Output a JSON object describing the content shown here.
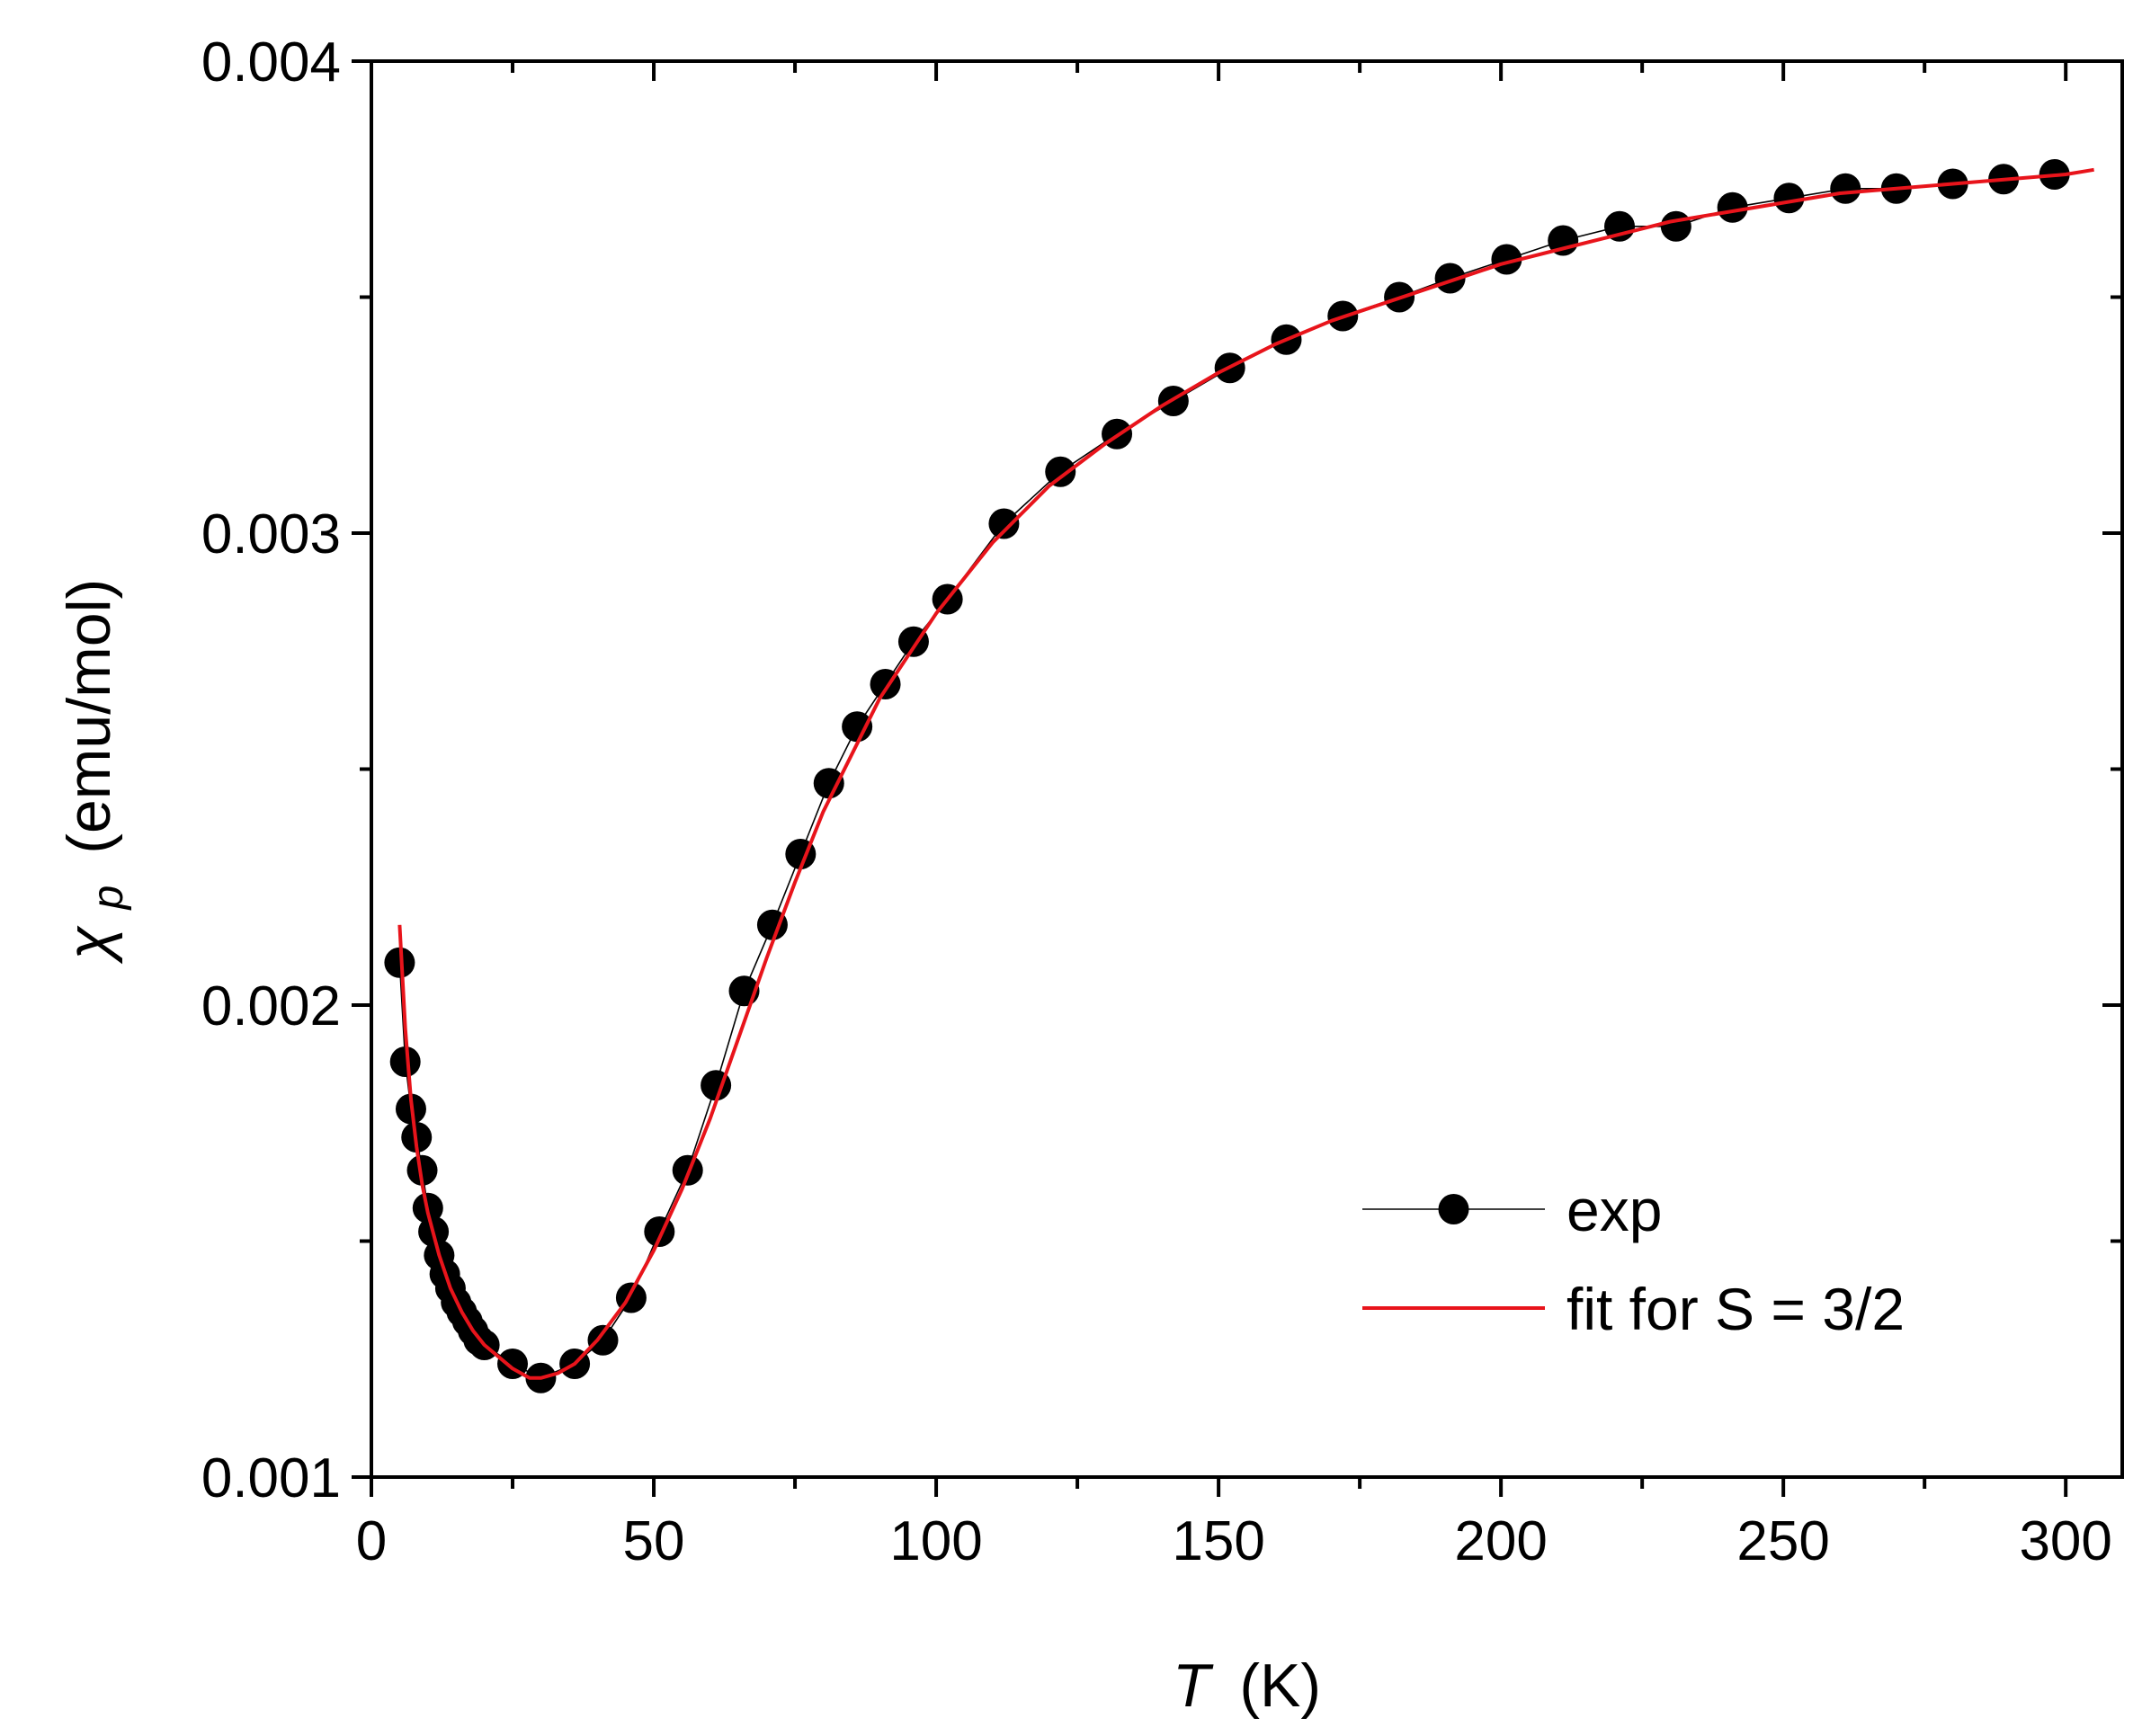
{
  "chart_data": {
    "type": "line",
    "title": "",
    "xlabel": {
      "symbol": "T",
      "unit": "(K)"
    },
    "ylabel": {
      "symbol": "χ",
      "subscript": "p",
      "unit": "(emu/mol)"
    },
    "xlim": [
      0,
      310
    ],
    "ylim": [
      0.001,
      0.004
    ],
    "x_ticks": [
      0,
      50,
      100,
      150,
      200,
      250,
      300
    ],
    "x_tick_labels": [
      "0",
      "50",
      "100",
      "150",
      "200",
      "250",
      "300"
    ],
    "y_ticks": [
      0.001,
      0.002,
      0.003,
      0.004
    ],
    "y_tick_labels": [
      "0.001",
      "0.002",
      "0.003",
      "0.004"
    ],
    "x_minor_ticks": [
      25,
      75,
      125,
      175,
      225,
      275
    ],
    "y_minor_ticks": [
      0.0015,
      0.0025,
      0.0035
    ],
    "grid": false,
    "legend_position": "bottom-right",
    "series": [
      {
        "name": "exp",
        "style": "line-marker",
        "color": "#000000",
        "x": [
          5,
          6,
          7,
          8,
          9,
          10,
          11,
          12,
          13,
          14,
          15,
          16,
          17,
          18,
          19,
          20,
          25,
          30,
          36,
          41,
          46,
          51,
          56,
          61,
          66,
          71,
          76,
          81,
          86,
          91,
          96,
          102,
          112,
          122,
          132,
          142,
          152,
          162,
          172,
          182,
          191,
          201,
          211,
          221,
          231,
          241,
          251,
          261,
          270,
          280,
          289,
          298
        ],
        "y": [
          0.00209,
          0.00188,
          0.00178,
          0.00172,
          0.00165,
          0.00157,
          0.00152,
          0.00147,
          0.00143,
          0.0014,
          0.00137,
          0.00135,
          0.00133,
          0.00131,
          0.00129,
          0.00128,
          0.00124,
          0.00121,
          0.00124,
          0.00129,
          0.00138,
          0.00152,
          0.00165,
          0.00183,
          0.00203,
          0.00217,
          0.00232,
          0.00247,
          0.00259,
          0.00268,
          0.00277,
          0.00286,
          0.00302,
          0.00313,
          0.00321,
          0.00328,
          0.00335,
          0.00341,
          0.00346,
          0.0035,
          0.00354,
          0.00358,
          0.00362,
          0.00365,
          0.00365,
          0.00369,
          0.00371,
          0.00373,
          0.00373,
          0.00374,
          0.00375,
          0.00376
        ]
      },
      {
        "name": "fit for S = 3/2",
        "style": "line",
        "color": "#e8141b",
        "x": [
          5,
          6,
          7,
          8,
          9,
          10,
          12,
          14,
          16,
          18,
          20,
          22,
          25,
          28,
          30,
          33,
          36,
          40,
          45,
          50,
          55,
          60,
          65,
          70,
          75,
          80,
          90,
          100,
          110,
          120,
          130,
          140,
          150,
          160,
          170,
          180,
          190,
          200,
          210,
          220,
          230,
          240,
          250,
          260,
          270,
          280,
          290,
          300,
          305
        ],
        "y": [
          0.00217,
          0.00195,
          0.0018,
          0.0017,
          0.00162,
          0.00156,
          0.00147,
          0.0014,
          0.00135,
          0.00131,
          0.00128,
          0.00126,
          0.00123,
          0.00121,
          0.00121,
          0.00122,
          0.00124,
          0.00129,
          0.00137,
          0.00148,
          0.00161,
          0.00176,
          0.00193,
          0.0021,
          0.00226,
          0.00241,
          0.00265,
          0.00283,
          0.00298,
          0.0031,
          0.00319,
          0.00327,
          0.00334,
          0.0034,
          0.00345,
          0.00349,
          0.00353,
          0.00357,
          0.0036,
          0.00363,
          0.00366,
          0.00368,
          0.0037,
          0.00372,
          0.00373,
          0.00374,
          0.00375,
          0.00376,
          0.00377
        ]
      }
    ]
  }
}
